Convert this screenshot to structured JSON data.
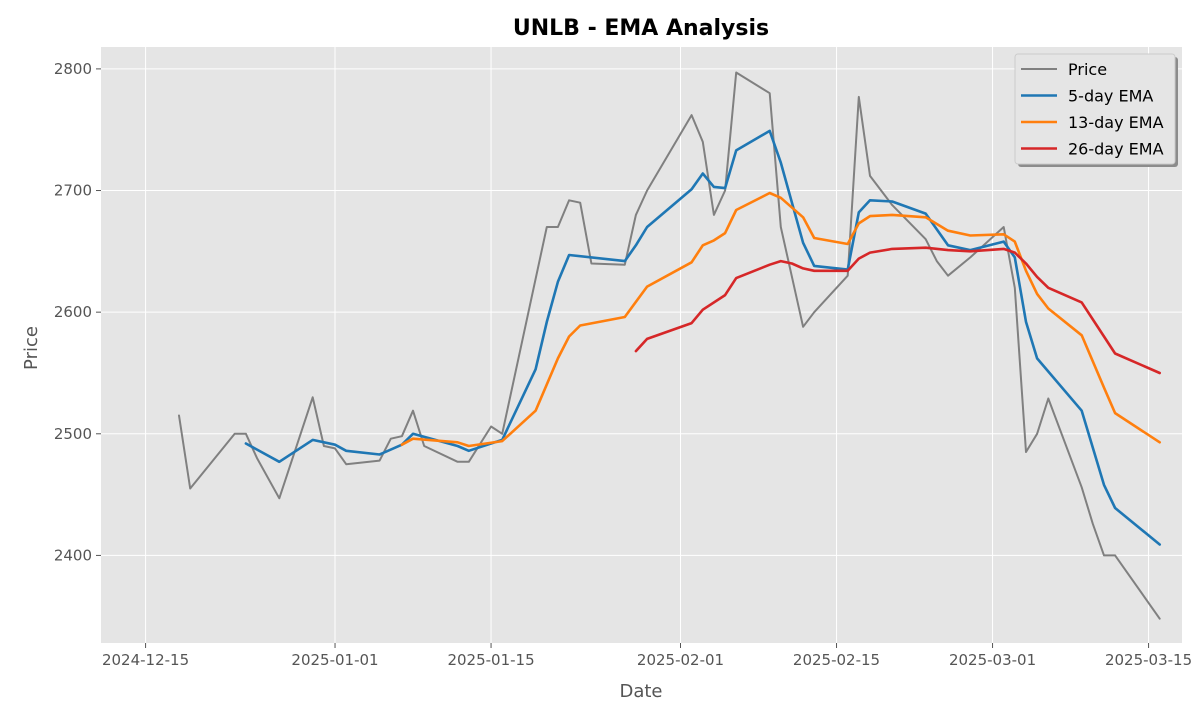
{
  "chart_data": {
    "type": "line",
    "title": "UNLB - EMA Analysis",
    "xlabel": "Date",
    "ylabel": "Price",
    "xlim": [
      "2024-12-11",
      "2025-03-18"
    ],
    "ylim": [
      2328,
      2818
    ],
    "x_ticks": [
      "2024-12-15",
      "2025-01-01",
      "2025-01-15",
      "2025-02-01",
      "2025-02-15",
      "2025-03-01",
      "2025-03-15"
    ],
    "y_ticks": [
      2400,
      2500,
      2600,
      2700,
      2800
    ],
    "grid": true,
    "legend": "top-right",
    "background": "#e5e5e5",
    "series": [
      {
        "name": "Price",
        "color": "#808080",
        "points": [
          [
            "2024-12-18",
            2515
          ],
          [
            "2024-12-19",
            2455
          ],
          [
            "2024-12-23",
            2500
          ],
          [
            "2024-12-24",
            2500
          ],
          [
            "2024-12-25",
            2480
          ],
          [
            "2024-12-27",
            2447
          ],
          [
            "2024-12-30",
            2530
          ],
          [
            "2024-12-31",
            2490
          ],
          [
            "2025-01-01",
            2488
          ],
          [
            "2025-01-02",
            2475
          ],
          [
            "2025-01-05",
            2478
          ],
          [
            "2025-01-06",
            2496
          ],
          [
            "2025-01-07",
            2498
          ],
          [
            "2025-01-08",
            2519
          ],
          [
            "2025-01-09",
            2490
          ],
          [
            "2025-01-12",
            2477
          ],
          [
            "2025-01-13",
            2477
          ],
          [
            "2025-01-15",
            2506
          ],
          [
            "2025-01-16",
            2500
          ],
          [
            "2025-01-20",
            2670
          ],
          [
            "2025-01-21",
            2670
          ],
          [
            "2025-01-22",
            2692
          ],
          [
            "2025-01-23",
            2690
          ],
          [
            "2025-01-24",
            2640
          ],
          [
            "2025-01-27",
            2639
          ],
          [
            "2025-01-28",
            2680
          ],
          [
            "2025-01-29",
            2700
          ],
          [
            "2025-02-02",
            2762
          ],
          [
            "2025-02-03",
            2740
          ],
          [
            "2025-02-04",
            2680
          ],
          [
            "2025-02-05",
            2700
          ],
          [
            "2025-02-06",
            2797
          ],
          [
            "2025-02-09",
            2780
          ],
          [
            "2025-02-10",
            2670
          ],
          [
            "2025-02-12",
            2588
          ],
          [
            "2025-02-13",
            2600
          ],
          [
            "2025-02-16",
            2630
          ],
          [
            "2025-02-17",
            2777
          ],
          [
            "2025-02-18",
            2712
          ],
          [
            "2025-02-20",
            2688
          ],
          [
            "2025-02-23",
            2660
          ],
          [
            "2025-02-24",
            2642
          ],
          [
            "2025-02-25",
            2630
          ],
          [
            "2025-02-27",
            2645
          ],
          [
            "2025-03-02",
            2670
          ],
          [
            "2025-03-03",
            2620
          ],
          [
            "2025-03-04",
            2485
          ],
          [
            "2025-03-05",
            2500
          ],
          [
            "2025-03-06",
            2529
          ],
          [
            "2025-03-09",
            2456
          ],
          [
            "2025-03-10",
            2426
          ],
          [
            "2025-03-11",
            2400
          ],
          [
            "2025-03-12",
            2400
          ],
          [
            "2025-03-16",
            2348
          ]
        ]
      },
      {
        "name": "5-day EMA",
        "color": "#1f77b4",
        "points": [
          [
            "2024-12-24",
            2492
          ],
          [
            "2024-12-27",
            2477
          ],
          [
            "2024-12-30",
            2495
          ],
          [
            "2025-01-01",
            2491
          ],
          [
            "2025-01-02",
            2486
          ],
          [
            "2025-01-05",
            2483
          ],
          [
            "2025-01-07",
            2491
          ],
          [
            "2025-01-08",
            2500
          ],
          [
            "2025-01-12",
            2490
          ],
          [
            "2025-01-13",
            2486
          ],
          [
            "2025-01-16",
            2495
          ],
          [
            "2025-01-19",
            2553
          ],
          [
            "2025-01-20",
            2592
          ],
          [
            "2025-01-21",
            2625
          ],
          [
            "2025-01-22",
            2647
          ],
          [
            "2025-01-27",
            2642
          ],
          [
            "2025-01-28",
            2655
          ],
          [
            "2025-01-29",
            2670
          ],
          [
            "2025-02-02",
            2701
          ],
          [
            "2025-02-03",
            2714
          ],
          [
            "2025-02-04",
            2703
          ],
          [
            "2025-02-05",
            2702
          ],
          [
            "2025-02-06",
            2733
          ],
          [
            "2025-02-09",
            2749
          ],
          [
            "2025-02-10",
            2723
          ],
          [
            "2025-02-12",
            2657
          ],
          [
            "2025-02-13",
            2638
          ],
          [
            "2025-02-16",
            2635
          ],
          [
            "2025-02-17",
            2682
          ],
          [
            "2025-02-18",
            2692
          ],
          [
            "2025-02-20",
            2691
          ],
          [
            "2025-02-23",
            2681
          ],
          [
            "2025-02-25",
            2655
          ],
          [
            "2025-02-27",
            2651
          ],
          [
            "2025-03-02",
            2658
          ],
          [
            "2025-03-03",
            2645
          ],
          [
            "2025-03-04",
            2592
          ],
          [
            "2025-03-05",
            2562
          ],
          [
            "2025-03-09",
            2519
          ],
          [
            "2025-03-11",
            2458
          ],
          [
            "2025-03-12",
            2439
          ],
          [
            "2025-03-16",
            2409
          ]
        ]
      },
      {
        "name": "13-day EMA",
        "color": "#ff7f0e",
        "points": [
          [
            "2025-01-07",
            2491
          ],
          [
            "2025-01-08",
            2496
          ],
          [
            "2025-01-12",
            2493
          ],
          [
            "2025-01-13",
            2490
          ],
          [
            "2025-01-16",
            2494
          ],
          [
            "2025-01-19",
            2519
          ],
          [
            "2025-01-21",
            2562
          ],
          [
            "2025-01-22",
            2580
          ],
          [
            "2025-01-23",
            2589
          ],
          [
            "2025-01-27",
            2596
          ],
          [
            "2025-01-29",
            2621
          ],
          [
            "2025-02-02",
            2641
          ],
          [
            "2025-02-03",
            2655
          ],
          [
            "2025-02-04",
            2659
          ],
          [
            "2025-02-05",
            2665
          ],
          [
            "2025-02-06",
            2684
          ],
          [
            "2025-02-09",
            2698
          ],
          [
            "2025-02-10",
            2694
          ],
          [
            "2025-02-12",
            2678
          ],
          [
            "2025-02-13",
            2661
          ],
          [
            "2025-02-16",
            2656
          ],
          [
            "2025-02-17",
            2673
          ],
          [
            "2025-02-18",
            2679
          ],
          [
            "2025-02-20",
            2680
          ],
          [
            "2025-02-23",
            2678
          ],
          [
            "2025-02-25",
            2667
          ],
          [
            "2025-02-27",
            2663
          ],
          [
            "2025-03-02",
            2664
          ],
          [
            "2025-03-03",
            2658
          ],
          [
            "2025-03-04",
            2634
          ],
          [
            "2025-03-05",
            2615
          ],
          [
            "2025-03-06",
            2603
          ],
          [
            "2025-03-09",
            2581
          ],
          [
            "2025-03-11",
            2538
          ],
          [
            "2025-03-12",
            2517
          ],
          [
            "2025-03-16",
            2493
          ]
        ]
      },
      {
        "name": "26-day EMA",
        "color": "#d62728",
        "points": [
          [
            "2025-01-28",
            2568
          ],
          [
            "2025-01-29",
            2578
          ],
          [
            "2025-02-02",
            2591
          ],
          [
            "2025-02-03",
            2602
          ],
          [
            "2025-02-05",
            2614
          ],
          [
            "2025-02-06",
            2628
          ],
          [
            "2025-02-09",
            2639
          ],
          [
            "2025-02-10",
            2642
          ],
          [
            "2025-02-11",
            2640
          ],
          [
            "2025-02-12",
            2636
          ],
          [
            "2025-02-13",
            2634
          ],
          [
            "2025-02-16",
            2634
          ],
          [
            "2025-02-17",
            2644
          ],
          [
            "2025-02-18",
            2649
          ],
          [
            "2025-02-20",
            2652
          ],
          [
            "2025-02-23",
            2653
          ],
          [
            "2025-02-25",
            2651
          ],
          [
            "2025-02-27",
            2650
          ],
          [
            "2025-03-02",
            2652
          ],
          [
            "2025-03-03",
            2649
          ],
          [
            "2025-03-04",
            2640
          ],
          [
            "2025-03-05",
            2629
          ],
          [
            "2025-03-06",
            2620
          ],
          [
            "2025-03-09",
            2608
          ],
          [
            "2025-03-11",
            2580
          ],
          [
            "2025-03-12",
            2566
          ],
          [
            "2025-03-16",
            2550
          ]
        ]
      }
    ]
  }
}
